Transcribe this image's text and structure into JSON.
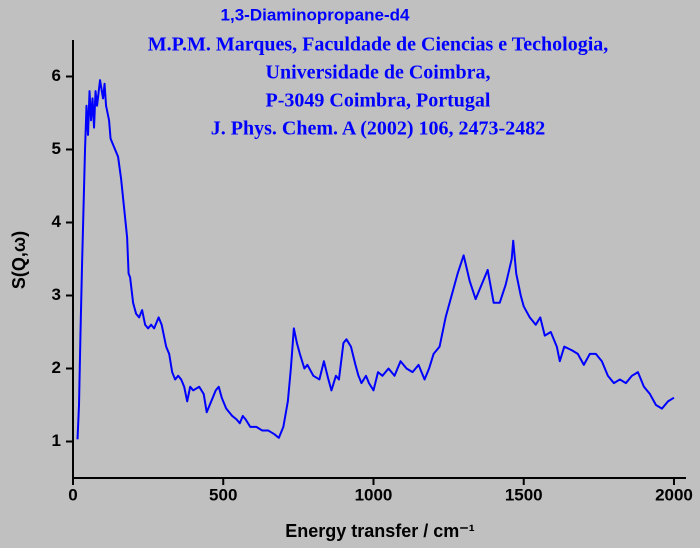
{
  "chart_data": {
    "type": "line",
    "title": "1,3-Diaminopropane-d4",
    "annotations": [
      "M.P.M. Marques, Faculdade de Ciencias e Techologia,",
      "Universidade de Coimbra,",
      "P-3049 Coimbra, Portugal",
      "J. Phys. Chem. A (2002) 106, 2473-2482"
    ],
    "x_label": "Energy transfer / cm⁻¹",
    "y_label": "S(Q,ω)",
    "xlim": [
      0,
      2040
    ],
    "xticks": [
      0,
      500,
      1000,
      1500,
      2000
    ],
    "ylim": [
      0.5,
      6.5
    ],
    "yticks": [
      1,
      2,
      3,
      4,
      5,
      6
    ],
    "grid": false,
    "x": [
      15,
      20,
      25,
      30,
      35,
      40,
      45,
      50,
      55,
      60,
      65,
      70,
      75,
      80,
      90,
      100,
      105,
      110,
      120,
      125,
      130,
      140,
      150,
      160,
      170,
      180,
      185,
      190,
      200,
      210,
      220,
      230,
      240,
      250,
      260,
      270,
      285,
      295,
      310,
      320,
      330,
      340,
      350,
      360,
      370,
      380,
      390,
      400,
      420,
      435,
      445,
      460,
      475,
      485,
      495,
      510,
      530,
      545,
      555,
      565,
      575,
      590,
      610,
      630,
      650,
      670,
      685,
      700,
      715,
      725,
      735,
      745,
      755,
      770,
      780,
      800,
      820,
      835,
      850,
      860,
      875,
      885,
      900,
      910,
      925,
      940,
      950,
      960,
      975,
      985,
      1000,
      1015,
      1030,
      1050,
      1070,
      1090,
      1110,
      1130,
      1150,
      1170,
      1185,
      1200,
      1220,
      1240,
      1260,
      1280,
      1300,
      1320,
      1340,
      1360,
      1380,
      1400,
      1420,
      1440,
      1460,
      1465,
      1475,
      1490,
      1500,
      1520,
      1540,
      1555,
      1570,
      1590,
      1610,
      1620,
      1635,
      1660,
      1680,
      1700,
      1720,
      1740,
      1760,
      1780,
      1800,
      1820,
      1840,
      1860,
      1880,
      1900,
      1920,
      1940,
      1960,
      1980,
      2000
    ],
    "series": [
      {
        "name": "S(Q,ω)",
        "color": "#0000ff",
        "values": [
          1.03,
          1.5,
          2.5,
          3.4,
          4.2,
          5.0,
          5.6,
          5.2,
          5.8,
          5.4,
          5.7,
          5.3,
          5.8,
          5.6,
          5.95,
          5.7,
          5.9,
          5.6,
          5.4,
          5.15,
          5.1,
          5.0,
          4.9,
          4.6,
          4.2,
          3.8,
          3.3,
          3.25,
          2.9,
          2.75,
          2.7,
          2.8,
          2.6,
          2.55,
          2.6,
          2.55,
          2.7,
          2.6,
          2.3,
          2.2,
          1.95,
          1.85,
          1.9,
          1.85,
          1.75,
          1.55,
          1.75,
          1.7,
          1.75,
          1.65,
          1.4,
          1.55,
          1.7,
          1.75,
          1.6,
          1.45,
          1.35,
          1.3,
          1.25,
          1.35,
          1.3,
          1.2,
          1.2,
          1.15,
          1.15,
          1.1,
          1.05,
          1.2,
          1.55,
          2.0,
          2.55,
          2.35,
          2.2,
          2.0,
          2.05,
          1.9,
          1.85,
          2.1,
          1.85,
          1.7,
          1.9,
          1.85,
          2.35,
          2.4,
          2.3,
          2.05,
          1.9,
          1.8,
          1.9,
          1.8,
          1.7,
          1.95,
          1.9,
          2.0,
          1.9,
          2.1,
          2.0,
          1.95,
          2.05,
          1.85,
          2.0,
          2.2,
          2.3,
          2.7,
          3.0,
          3.3,
          3.55,
          3.2,
          2.95,
          3.15,
          3.35,
          2.9,
          2.9,
          3.15,
          3.5,
          3.75,
          3.3,
          3.0,
          2.85,
          2.7,
          2.6,
          2.7,
          2.45,
          2.5,
          2.3,
          2.1,
          2.3,
          2.25,
          2.2,
          2.05,
          2.2,
          2.2,
          2.1,
          1.9,
          1.8,
          1.85,
          1.8,
          1.9,
          1.95,
          1.75,
          1.65,
          1.5,
          1.45,
          1.55,
          1.6
        ]
      }
    ]
  }
}
